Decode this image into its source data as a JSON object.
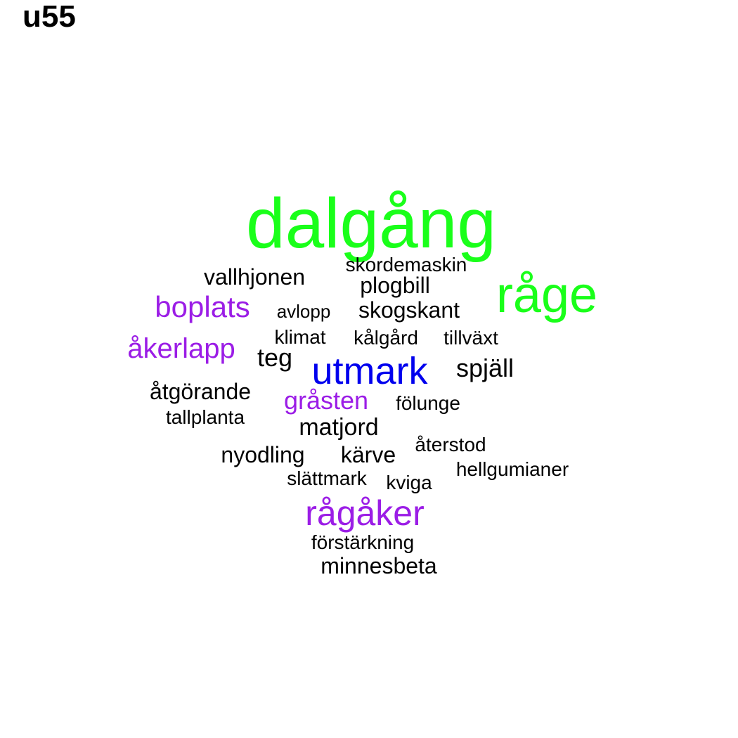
{
  "title": "u55",
  "colors": {
    "green": "#1aff1a",
    "blue": "#0000ee",
    "purple": "#9b1de6",
    "black": "#000000"
  },
  "words": [
    {
      "text": "dalgång",
      "color": "green"
    },
    {
      "text": "råge",
      "color": "green"
    },
    {
      "text": "utmark",
      "color": "blue"
    },
    {
      "text": "rågåker",
      "color": "purple"
    },
    {
      "text": "boplats",
      "color": "purple"
    },
    {
      "text": "åkerlapp",
      "color": "purple"
    },
    {
      "text": "gråsten",
      "color": "purple"
    },
    {
      "text": "vallhjonen",
      "color": "black"
    },
    {
      "text": "skordemaskin",
      "color": "black"
    },
    {
      "text": "plogbill",
      "color": "black"
    },
    {
      "text": "avlopp",
      "color": "black"
    },
    {
      "text": "skogskant",
      "color": "black"
    },
    {
      "text": "klimat",
      "color": "black"
    },
    {
      "text": "kålgård",
      "color": "black"
    },
    {
      "text": "tillväxt",
      "color": "black"
    },
    {
      "text": "teg",
      "color": "black"
    },
    {
      "text": "spjäll",
      "color": "black"
    },
    {
      "text": "åtgörande",
      "color": "black"
    },
    {
      "text": "tallplanta",
      "color": "black"
    },
    {
      "text": "fölunge",
      "color": "black"
    },
    {
      "text": "matjord",
      "color": "black"
    },
    {
      "text": "återstod",
      "color": "black"
    },
    {
      "text": "nyodling",
      "color": "black"
    },
    {
      "text": "kärve",
      "color": "black"
    },
    {
      "text": "hellgumianer",
      "color": "black"
    },
    {
      "text": "slättmark",
      "color": "black"
    },
    {
      "text": "kviga",
      "color": "black"
    },
    {
      "text": "förstärkning",
      "color": "black"
    },
    {
      "text": "minnesbeta",
      "color": "black"
    }
  ]
}
